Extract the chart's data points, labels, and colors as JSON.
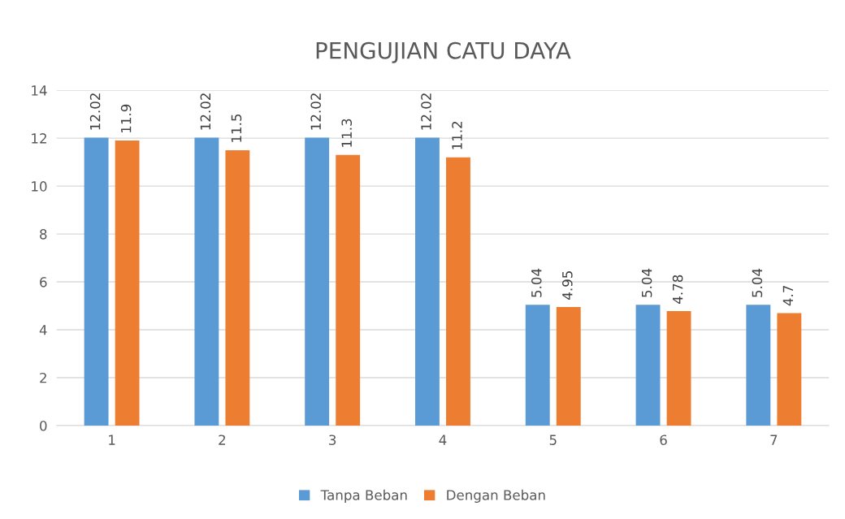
{
  "chart_data": {
    "type": "bar",
    "title": "PENGUJIAN CATU DAYA",
    "categories": [
      "1",
      "2",
      "3",
      "4",
      "5",
      "6",
      "7"
    ],
    "series": [
      {
        "name": "Tanpa Beban",
        "color": "#5b9bd5",
        "values": [
          12.02,
          12.02,
          12.02,
          12.02,
          5.04,
          5.04,
          5.04
        ]
      },
      {
        "name": "Dengan Beban",
        "color": "#ed7d31",
        "values": [
          11.9,
          11.5,
          11.3,
          11.2,
          4.95,
          4.78,
          4.7
        ]
      }
    ],
    "ylim": [
      0,
      14
    ],
    "yticks": [
      0,
      2,
      4,
      6,
      8,
      10,
      12,
      14
    ],
    "grid": "y",
    "legend": "bottom",
    "data_labels": true
  }
}
